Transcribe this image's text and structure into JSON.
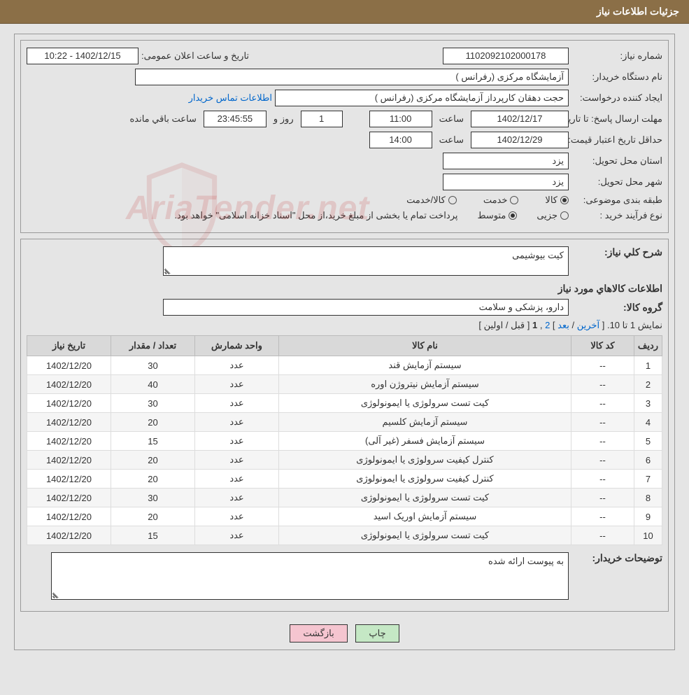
{
  "header": {
    "title": "جزئیات اطلاعات نیاز"
  },
  "watermark": "AriaTender.net",
  "fields": {
    "need_number_label": "شماره نیاز:",
    "need_number": "1102092102000178",
    "announce_label": "تاریخ و ساعت اعلان عمومی:",
    "announce_value": "1402/12/15 - 10:22",
    "buyer_label": "نام دستگاه خریدار:",
    "buyer_value": "آزمایشگاه مرکزی (رفرانس )",
    "requester_label": "ایجاد کننده درخواست:",
    "requester_value": "حجت دهقان کارپرداز آزمایشگاه مرکزی (رفرانس )",
    "contact_link": "اطلاعات تماس خریدار",
    "deadline_date_label": "مهلت ارسال پاسخ:",
    "until_date_label": "تا تاریخ:",
    "deadline_date": "1402/12/17",
    "time_label": "ساعت",
    "deadline_time": "11:00",
    "days_value": "1",
    "days_and_label": "روز و",
    "remaining_time": "23:45:55",
    "remaining_label": "ساعت باقي مانده",
    "validity_label": "حداقل تاریخ اعتبار قیمت:",
    "validity_date": "1402/12/29",
    "validity_time": "14:00",
    "province_label": "استان محل تحویل:",
    "province_value": "یزد",
    "city_label": "شهر محل تحویل:",
    "city_value": "یزد",
    "category_label": "طبقه بندی موضوعی:",
    "cat_goods": "کالا",
    "cat_service": "خدمت",
    "cat_goods_service": "کالا/خدمت",
    "process_label": "نوع فرآیند خرید :",
    "process_partial": "جزیی",
    "process_medium": "متوسط",
    "process_note": "پرداخت تمام یا بخشی از مبلغ خرید،از محل \"اسناد خزانه اسلامی\" خواهد بود."
  },
  "section2": {
    "summary_label": "شرح کلي نياز:",
    "summary_value": "کیت بیوشیمی",
    "goods_heading": "اطلاعات کالاهاي مورد نياز",
    "group_label": "گروه کالا:",
    "group_value": "دارو، پزشکی و سلامت",
    "pagination_text": "نمایش 1 تا 10.",
    "pag_last": "آخرین",
    "pag_next": "بعد",
    "pag_2": "2",
    "pag_1": "1",
    "pag_prev": "قبل",
    "pag_first": "اولین",
    "buyer_notes_label": "توضیحات خریدار:",
    "buyer_notes_value": "به پیوست ارائه شده"
  },
  "table": {
    "columns": [
      "ردیف",
      "کد کالا",
      "نام کالا",
      "واحد شمارش",
      "تعداد / مقدار",
      "تاریخ نیاز"
    ],
    "rows": [
      [
        "1",
        "--",
        "سیستم آزمایش قند",
        "عدد",
        "30",
        "1402/12/20"
      ],
      [
        "2",
        "--",
        "سیستم آزمایش نیتروژن اوره",
        "عدد",
        "40",
        "1402/12/20"
      ],
      [
        "3",
        "--",
        "کیت تست سرولوژی یا ایمونولوژی",
        "عدد",
        "30",
        "1402/12/20"
      ],
      [
        "4",
        "--",
        "سیستم آزمایش کلسیم",
        "عدد",
        "20",
        "1402/12/20"
      ],
      [
        "5",
        "--",
        "سیستم آزمایش فسفر (غیر آلی)",
        "عدد",
        "15",
        "1402/12/20"
      ],
      [
        "6",
        "--",
        "کنترل کیفیت سرولوژی یا ایمونولوژی",
        "عدد",
        "20",
        "1402/12/20"
      ],
      [
        "7",
        "--",
        "کنترل کیفیت سرولوژی یا ایمونولوژی",
        "عدد",
        "20",
        "1402/12/20"
      ],
      [
        "8",
        "--",
        "کیت تست سرولوژی یا ایمونولوژی",
        "عدد",
        "30",
        "1402/12/20"
      ],
      [
        "9",
        "--",
        "سیستم آزمایش اوریک اسید",
        "عدد",
        "20",
        "1402/12/20"
      ],
      [
        "10",
        "--",
        "کیت تست سرولوژی یا ایمونولوژی",
        "عدد",
        "15",
        "1402/12/20"
      ]
    ],
    "col_widths": [
      "40px",
      "90px",
      "auto",
      "120px",
      "120px",
      "120px"
    ]
  },
  "buttons": {
    "print": "چاپ",
    "back": "بازگشت"
  }
}
